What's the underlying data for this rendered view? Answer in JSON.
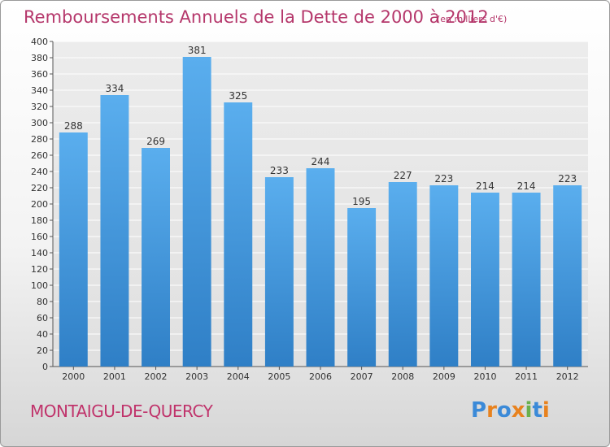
{
  "chart_data": {
    "type": "bar",
    "title": "Remboursements Annuels de la Dette de 2000 à 2012",
    "unit_note": "(en milliers d'€)",
    "categories": [
      "2000",
      "2001",
      "2002",
      "2003",
      "2004",
      "2005",
      "2006",
      "2007",
      "2008",
      "2009",
      "2010",
      "2011",
      "2012"
    ],
    "values": [
      288,
      334,
      269,
      381,
      325,
      233,
      244,
      195,
      227,
      223,
      214,
      214,
      223
    ],
    "ylim": [
      0,
      400
    ],
    "ytick_step": 20,
    "xlabel": "",
    "ylabel": "",
    "grid": true,
    "bar_color": "#4a9de0"
  },
  "footer": {
    "commune": "MONTAIGU-DE-QUERCY",
    "logo_text": "Proxiti",
    "logo_colors": [
      "#3b8ad8",
      "#e8821e",
      "#3b8ad8",
      "#e8821e",
      "#6ab04c",
      "#3b8ad8",
      "#e8821e"
    ]
  }
}
